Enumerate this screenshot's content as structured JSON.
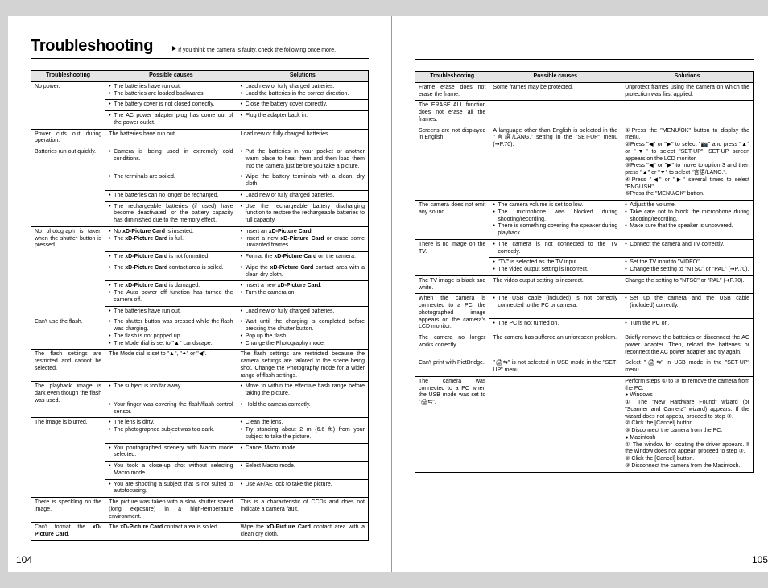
{
  "title": "Troubleshooting",
  "subtitle": "If you think the camera is faulty, check the following once more.",
  "headers": {
    "c1": "Troubleshooting",
    "c2": "Possible causes",
    "c3": "Solutions"
  },
  "pageNumLeft": "104",
  "pageNumRight": "105",
  "left": [
    {
      "issue": "No power.",
      "rows": [
        {
          "cause": "• The batteries have run out.\n• The batteries are loaded backwards.",
          "sol": "• Load new or fully charged batteries.\n• Load the batteries in the correct direction."
        },
        {
          "cause": "• The battery cover is not closed correctly.",
          "sol": "• Close the battery cover correctly."
        },
        {
          "cause": "• The AC power adapter plug has come out of the power outlet.",
          "sol": "• Plug the adapter back in."
        }
      ]
    },
    {
      "issue": "Power cuts out during operation.",
      "rows": [
        {
          "cause": "The batteries have run out.",
          "sol": "Load new or fully charged batteries."
        }
      ]
    },
    {
      "issue": "Batteries run out quickly.",
      "rows": [
        {
          "cause": "• Camera is being used in extremely cold conditions.",
          "sol": "• Put the batteries in your pocket or another warm place to heat them and then load them into the camera just before you take a picture."
        },
        {
          "cause": "• The terminals are soiled.",
          "sol": "• Wipe the battery terminals with a clean, dry cloth."
        },
        {
          "cause": "• The batteries can no longer be recharged.",
          "sol": "• Load new or fully charged batteries."
        },
        {
          "cause": "• The rechargeable batteries (if used) have become deactivated, or the battery capacity has diminished due to the memory effect.",
          "sol": "• Use the rechargeable battery discharging function to restore the rechargeable batteries to full capacity."
        }
      ]
    },
    {
      "issue": "No photograph is taken when the shutter button is pressed.",
      "rows": [
        {
          "cause": "• No <strong>xD-Picture Card</strong> is inserted.\n• The <strong>xD-Picture Card</strong> is full.",
          "sol": "• Insert an <strong>xD-Picture Card</strong>.\n• Insert a new <strong>xD-Picture Card</strong> or erase some unwanted frames."
        },
        {
          "cause": "• The <strong>xD-Picture Card</strong> is not formatted.",
          "sol": "• Format the <strong>xD-Picture Card</strong> on the camera."
        },
        {
          "cause": "• The <strong>xD-Picture Card</strong> contact area is soiled.",
          "sol": "• Wipe the <strong>xD-Picture Card</strong> contact area with a clean dry cloth."
        },
        {
          "cause": "• The <strong>xD-Picture Card</strong> is damaged.\n• The Auto power off function has turned the camera off.",
          "sol": "• Insert a new <strong>xD-Picture Card</strong>.\n• Turn the camera on."
        },
        {
          "cause": "• The batteries have run out.",
          "sol": "• Load new or fully charged batteries."
        }
      ]
    },
    {
      "issue": "Can't use the flash.",
      "rows": [
        {
          "cause": "• The shutter button was pressed while the flash was charging.\n• The flash is not popped up.\n• The Mode dial is set to \"▲\" Landscape.",
          "sol": "• Wait until the charging is completed before pressing the shutter button.\n• Pop up the flash.\n• Change the Photography mode."
        }
      ]
    },
    {
      "issue": "The flash settings are restricted and cannot be selected.",
      "rows": [
        {
          "cause": "The Mode dial is set to \"▲\", \"✦\" or \"◀\".",
          "sol": "The flash settings are restricted because the camera settings are tailored to the scene being shot. Change the Photography mode for a wider range of flash settings."
        }
      ]
    },
    {
      "issue": "The playback image is dark even though the flash was used.",
      "rows": [
        {
          "cause": "• The subject is too far away.",
          "sol": "• Move to within the effective flash range before taking the picture."
        },
        {
          "cause": "• Your finger was covering the flash/flash control sensor.",
          "sol": "• Hold the camera correctly."
        }
      ]
    },
    {
      "issue": "The image is blurred.",
      "rows": [
        {
          "cause": "• The lens is dirty.\n• The photographed subject was too dark.",
          "sol": "• Clean the lens.\n• Try standing about 2 m (6.6 ft.) from your subject to take the picture."
        },
        {
          "cause": "• You photographed scenery with Macro mode selected.",
          "sol": "• Cancel Macro mode."
        },
        {
          "cause": "• You took a close-up shot without selecting Macro mode.",
          "sol": "• Select Macro mode."
        },
        {
          "cause": "• You are shooting a subject that is not suited to autofocusing.",
          "sol": "• Use AF/AE lock to take the picture."
        }
      ]
    },
    {
      "issue": "There is speckling on the image.",
      "rows": [
        {
          "cause": "The picture was taken with a slow shutter speed (long exposure) in a high-temperature environment.",
          "sol": "This is a characteristic of CCDs and does not indicate a camera fault."
        }
      ]
    },
    {
      "issue": "Can't format the <strong>xD-Picture Card</strong>.",
      "rows": [
        {
          "cause": "The <strong>xD-Picture Card</strong> contact area is soiled.",
          "sol": "Wipe the <strong>xD-Picture Card</strong> contact area with a clean dry cloth."
        }
      ]
    }
  ],
  "right": [
    {
      "issue": "Frame erase does not erase the frame.",
      "rows": [
        {
          "cause": "Some frames may be protected.",
          "sol": "Unprotect frames using the camera on which the protection was first applied."
        }
      ]
    },
    {
      "issue": "The ERASE ALL function does not erase all the frames.",
      "rows": [
        {
          "cause": "",
          "sol": ""
        }
      ],
      "mergeUp": true
    },
    {
      "issue": "Screens are not displayed in English.",
      "rows": [
        {
          "cause": "A language other than English is selected in the \"言語/LANG.\" setting in the \"SET-UP\" menu (➜P.70).",
          "sol": "<span class='circ'>①</span>Press the \"MENU/OK\" button to display the menu.\n<span class='circ'>②</span>Press \"◀\" or \"▶\" to select \"📷\" and press \"▲\" or \"▼\" to select \"SET-UP\". SET-UP screen appears on the LCD monitor.\n<span class='circ'>③</span>Press \"◀\" or \"▶\" to move to option 3 and then press \"▲\" or \"▼\" to select \"言語/LANG.\".\n<span class='circ'>④</span>Press \"◀\" or \"▶\" several times to select \"ENGLISH\".\n<span class='circ'>⑤</span>Press the \"MENU/OK\" button."
        }
      ]
    },
    {
      "issue": "The camera does not emit any sound.",
      "rows": [
        {
          "cause": "• The camera volume is set too low.\n• The microphone was blocked during shooting/recording.\n• There is something covering the speaker during playback.",
          "sol": "• Adjust the volume.\n• Take care not to block the microphone during shooting/recording.\n• Make sure that the speaker is uncovered."
        }
      ]
    },
    {
      "issue": "There is no image on the TV.",
      "rows": [
        {
          "cause": "• The camera is not connected to the TV correctly.",
          "sol": "• Connect the camera and TV correctly."
        },
        {
          "cause": "• \"TV\" is selected as the TV input.\n• The video output setting is incorrect.",
          "sol": "• Set the TV input to \"VIDEO\".\n• Change the setting to \"NTSC\" or \"PAL\" (➜P.70)."
        }
      ]
    },
    {
      "issue": "The TV image is black and white.",
      "rows": [
        {
          "cause": "The video output setting is incorrect.",
          "sol": "Change the setting to \"NTSC\" or \"PAL\" (➜P.70)."
        }
      ]
    },
    {
      "issue": "When the camera is connected to a PC, the photographed image appears on the camera's LCD monitor.",
      "rows": [
        {
          "cause": "• The USB cable (included) is not correctly connected to the PC or camera.",
          "sol": "• Set up the camera and the USB cable (included) correctly."
        },
        {
          "cause": "• The PC is not turned on.",
          "sol": "• Turn the PC on."
        }
      ]
    },
    {
      "issue": "The camera no longer works correctly.",
      "rows": [
        {
          "cause": "The camera has suffered an unforeseen problem.",
          "sol": "Briefly remove the batteries or disconnect the AC power adapter. Then, reload the batteries or reconnect the AC power adapter and try again."
        }
      ]
    },
    {
      "issue": "Can't print with PictBridge.",
      "rows": [
        {
          "cause": "\"🖨⇆\" is not selected in USB mode in the \"SET-UP\" menu.",
          "sol": "Select \"🖨⇆\" in USB mode in the \"SET-UP\" menu."
        }
      ]
    },
    {
      "issue": "The camera was connected to a PC when the USB mode was set to \"🖨⇆\".",
      "rows": [
        {
          "cause": "",
          "sol": "Perform steps <span class='circ'>①</span> to <span class='circ'>③</span> to remove the camera from the PC.\n● Windows\n<span class='circ'>①</span> The \"New Hardware Found\" wizard (or \"Scanner and Camera\" wizard) appears. If the wizard does not appear, proceed to step <span class='circ'>③</span>.\n<span class='circ'>②</span> Click the [Cancel] button.\n<span class='circ'>③</span> Disconnect the camera from the PC.\n● Macintosh\n<span class='circ'>①</span> The window for locating the driver appears. If the window does not appear, proceed to step <span class='circ'>③</span>.\n<span class='circ'>②</span> Click the [Cancel] button.\n<span class='circ'>③</span> Disconnect the camera from the Macintosh."
        }
      ]
    }
  ]
}
